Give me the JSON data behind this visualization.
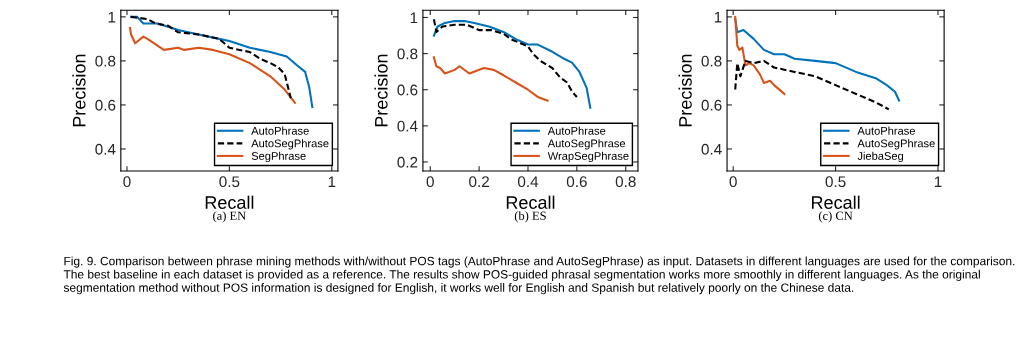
{
  "chart_data": [
    {
      "type": "line",
      "xlabel": "Recall",
      "ylabel": "Precision",
      "xlim": [
        -0.03,
        1.03
      ],
      "ylim": [
        0.3,
        1.03
      ],
      "xticks": [
        0,
        0.5,
        1
      ],
      "yticks": [
        0.4,
        0.6,
        0.8,
        1
      ],
      "grid": false,
      "legend": "bottom right",
      "annotations": [
        "(a) EN",
        "Fig. 9. Comparison between phrase mining methods with/without POS tags (AutoPhrase and AutoSegPhrase) as input. Datasets in different languages are used for the comparison. The best baseline in each dataset is provided as a reference. The results show POS-guided phrasal segmentation works more smoothly in different languages. As the original segmentation method without POS information is designed for English, it works well for English and Spanish but relatively poorly on the Chinese data."
      ],
      "series": [
        {
          "name": "AutoPhrase",
          "color": "#0072bd",
          "line_style": "solid",
          "x": [
            0.02,
            0.05,
            0.08,
            0.15,
            0.25,
            0.35,
            0.45,
            0.5,
            0.6,
            0.7,
            0.78,
            0.83,
            0.87,
            0.89,
            0.905
          ],
          "values": [
            1.0,
            1.0,
            0.97,
            0.97,
            0.94,
            0.92,
            0.9,
            0.89,
            0.86,
            0.84,
            0.82,
            0.78,
            0.75,
            0.68,
            0.59
          ]
        },
        {
          "name": "AutoSegPhrase",
          "color": "#000000",
          "line_style": "dashed",
          "x": [
            0.02,
            0.1,
            0.14,
            0.2,
            0.25,
            0.35,
            0.45,
            0.5,
            0.55,
            0.6,
            0.65,
            0.7,
            0.74,
            0.77,
            0.8
          ],
          "values": [
            1.0,
            0.99,
            0.97,
            0.96,
            0.93,
            0.92,
            0.9,
            0.86,
            0.85,
            0.84,
            0.81,
            0.79,
            0.77,
            0.74,
            0.63
          ]
        },
        {
          "name": "SegPhrase",
          "color": "#d95319",
          "line_style": "solid",
          "x": [
            0.015,
            0.02,
            0.04,
            0.08,
            0.1,
            0.18,
            0.25,
            0.28,
            0.35,
            0.42,
            0.5,
            0.6,
            0.7,
            0.77,
            0.82
          ],
          "values": [
            0.95,
            0.92,
            0.88,
            0.91,
            0.9,
            0.85,
            0.86,
            0.85,
            0.86,
            0.85,
            0.83,
            0.79,
            0.73,
            0.67,
            0.61
          ]
        }
      ]
    },
    {
      "type": "line",
      "xlabel": "Recall",
      "ylabel": "Precision",
      "xlim": [
        -0.03,
        0.85
      ],
      "ylim": [
        0.15,
        1.04
      ],
      "xticks": [
        0,
        0.2,
        0.4,
        0.6,
        0.8
      ],
      "yticks": [
        0.2,
        0.4,
        0.6,
        0.8,
        1
      ],
      "grid": false,
      "legend": "bottom right",
      "annotations": [
        "(b) ES"
      ],
      "series": [
        {
          "name": "AutoPhrase",
          "color": "#0072bd",
          "line_style": "solid",
          "x": [
            0.015,
            0.03,
            0.06,
            0.1,
            0.14,
            0.18,
            0.24,
            0.3,
            0.35,
            0.4,
            0.44,
            0.5,
            0.55,
            0.58,
            0.61,
            0.64,
            0.655
          ],
          "values": [
            0.9,
            0.95,
            0.97,
            0.98,
            0.98,
            0.97,
            0.95,
            0.92,
            0.88,
            0.85,
            0.85,
            0.81,
            0.77,
            0.75,
            0.7,
            0.61,
            0.5
          ]
        },
        {
          "name": "AutoSegPhrase",
          "color": "#000000",
          "line_style": "dashed",
          "x": [
            0.015,
            0.025,
            0.05,
            0.1,
            0.15,
            0.2,
            0.25,
            0.3,
            0.33,
            0.4,
            0.42,
            0.45,
            0.5,
            0.53,
            0.56,
            0.58,
            0.6
          ],
          "values": [
            0.99,
            0.92,
            0.95,
            0.96,
            0.96,
            0.93,
            0.93,
            0.91,
            0.88,
            0.84,
            0.8,
            0.76,
            0.72,
            0.67,
            0.64,
            0.59,
            0.56
          ]
        },
        {
          "name": "WrapSegPhrase",
          "color": "#d95319",
          "line_style": "solid",
          "x": [
            0.015,
            0.025,
            0.04,
            0.06,
            0.1,
            0.12,
            0.16,
            0.22,
            0.26,
            0.3,
            0.35,
            0.4,
            0.44,
            0.48
          ],
          "values": [
            0.78,
            0.73,
            0.72,
            0.69,
            0.71,
            0.73,
            0.69,
            0.72,
            0.71,
            0.68,
            0.64,
            0.6,
            0.56,
            0.54
          ]
        }
      ]
    },
    {
      "type": "line",
      "xlabel": "Recall",
      "ylabel": "Precision",
      "xlim": [
        -0.03,
        1.03
      ],
      "ylim": [
        0.3,
        1.03
      ],
      "xticks": [
        0,
        0.5,
        1
      ],
      "yticks": [
        0.4,
        0.6,
        0.8,
        1
      ],
      "grid": false,
      "legend": "bottom right",
      "annotations": [
        "(c) CN"
      ],
      "series": [
        {
          "name": "AutoPhrase",
          "color": "#0072bd",
          "line_style": "solid",
          "x": [
            0.01,
            0.02,
            0.05,
            0.1,
            0.15,
            0.2,
            0.25,
            0.3,
            0.4,
            0.5,
            0.6,
            0.7,
            0.75,
            0.79,
            0.81
          ],
          "values": [
            0.99,
            0.93,
            0.94,
            0.9,
            0.85,
            0.83,
            0.83,
            0.81,
            0.8,
            0.79,
            0.75,
            0.72,
            0.69,
            0.66,
            0.62
          ]
        },
        {
          "name": "AutoSegPhrase",
          "color": "#000000",
          "line_style": "dashed",
          "x": [
            0.01,
            0.02,
            0.035,
            0.06,
            0.1,
            0.15,
            0.2,
            0.3,
            0.4,
            0.5,
            0.6,
            0.7,
            0.76
          ],
          "values": [
            0.67,
            0.79,
            0.73,
            0.8,
            0.79,
            0.8,
            0.77,
            0.75,
            0.73,
            0.69,
            0.65,
            0.61,
            0.58
          ]
        },
        {
          "name": "JiebaSeg",
          "color": "#d95319",
          "line_style": "solid",
          "x": [
            0.01,
            0.02,
            0.03,
            0.045,
            0.06,
            0.08,
            0.1,
            0.13,
            0.15,
            0.18,
            0.2,
            0.25
          ],
          "values": [
            1.0,
            0.87,
            0.85,
            0.86,
            0.78,
            0.79,
            0.78,
            0.74,
            0.7,
            0.71,
            0.69,
            0.65
          ]
        }
      ]
    }
  ]
}
